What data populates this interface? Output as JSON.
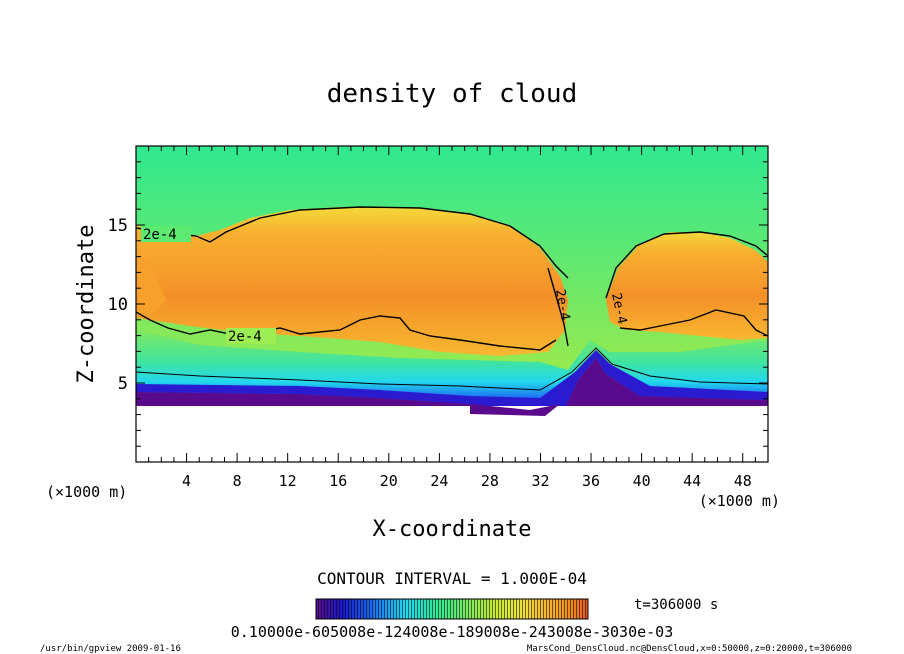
{
  "chart_data": {
    "type": "heatmap",
    "title": "density of cloud",
    "xlabel": "X-coordinate",
    "ylabel": "Z-coordinate",
    "x_unit": "(×1000 m)",
    "y_unit": "(×1000 m)",
    "xlim": [
      0,
      50
    ],
    "ylim": [
      0,
      20
    ],
    "x_ticks": [
      4,
      8,
      12,
      16,
      20,
      24,
      28,
      32,
      36,
      40,
      44,
      48
    ],
    "y_ticks": [
      5,
      10,
      15
    ],
    "contour_interval_text": "CONTOUR INTERVAL = 1.000E-04",
    "contour_labels": [
      "2e-4",
      "2e-4",
      "2e-4",
      "2e-4"
    ],
    "colorbar_labels": "0.10000e-605008e-124008e-189008e-243008e-3030e-03",
    "time_label": "t=306000 s",
    "colormap": [
      "#5a0a8c",
      "#1a1ad0",
      "#1e78f0",
      "#22d8ee",
      "#30e890",
      "#7ee860",
      "#c8ec30",
      "#f0e040",
      "#f8b030",
      "#f08a20",
      "#e85a2a"
    ]
  },
  "footer": {
    "left": "/usr/bin/gpview  2009-01-16",
    "right": "MarsCond_DensCloud.nc@DensCloud,x=0:50000,z=0:20000,t=306000"
  }
}
